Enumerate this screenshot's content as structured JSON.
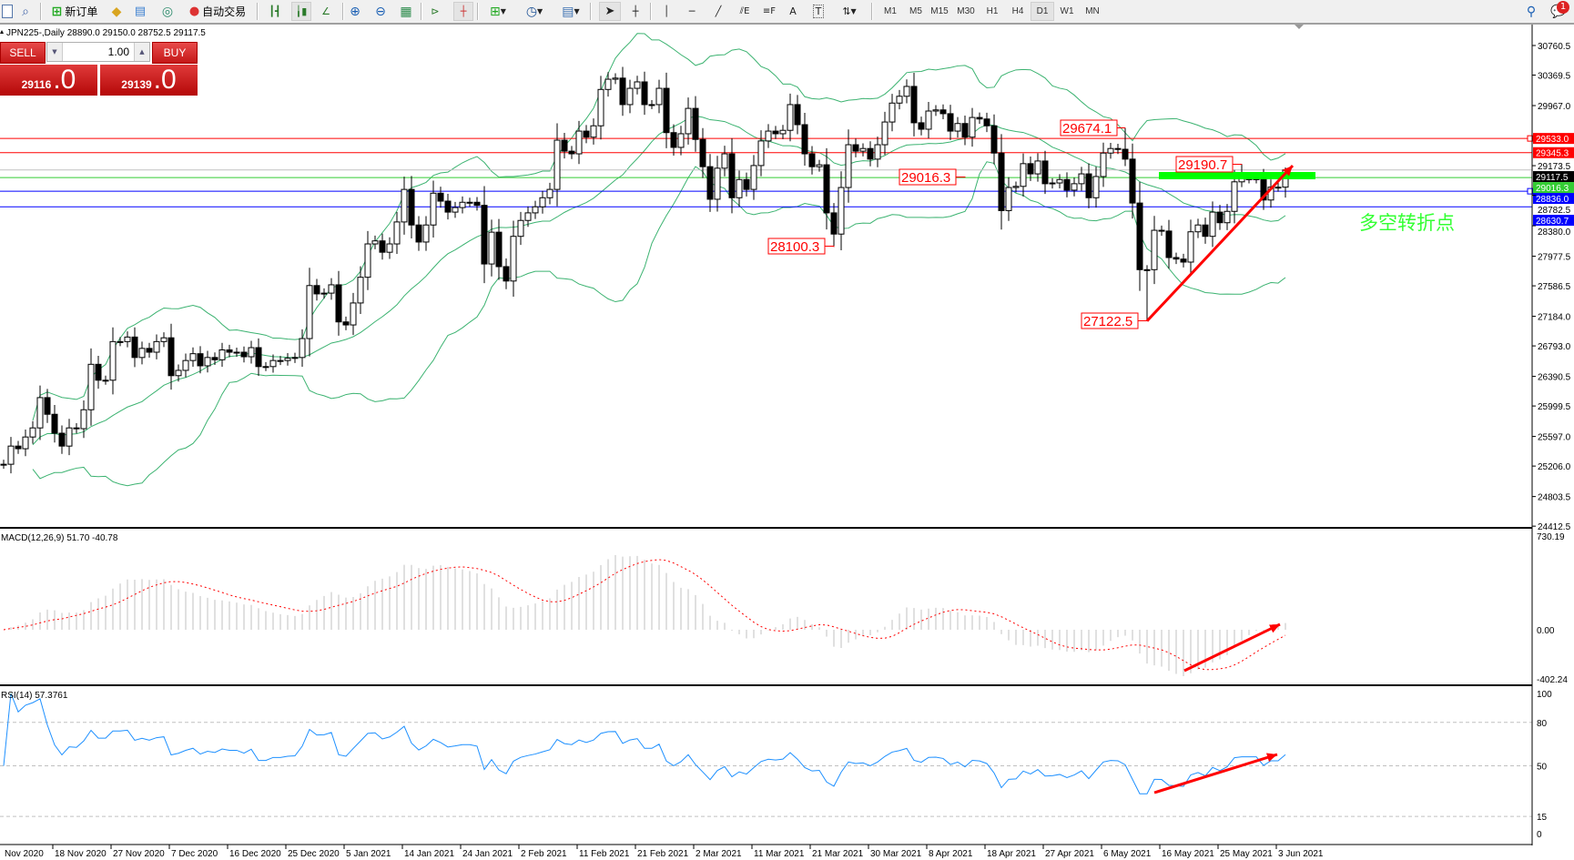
{
  "toolbar": {
    "new_order_label": "新订单",
    "auto_trading_label": "自动交易",
    "timeframes": [
      "M1",
      "M5",
      "M15",
      "M30",
      "H1",
      "H4",
      "D1",
      "W1",
      "MN"
    ],
    "active_timeframe": "D1",
    "notification_count": "1",
    "text_tool_label": "A",
    "label_tool_label": "T"
  },
  "chart_header": "JPN225-,Daily  28890.0 29150.0 28752.5 29117.5",
  "one_click": {
    "sell_label": "SELL",
    "buy_label": "BUY",
    "lot": "1.00",
    "sell_price_main": "29116",
    "sell_price_frac": ".0",
    "buy_price_main": "29139",
    "buy_price_frac": ".0"
  },
  "colors": {
    "bollinger": "#3cb371",
    "macd_hist": "#c0c0c0",
    "macd_signal": "#ff0000",
    "rsi": "#1e90ff",
    "annotation": "#ff0000",
    "zone": "#00ff00",
    "resistance": "#ff0000",
    "support": "#0000ff",
    "pivot": "#33cc33",
    "bid": "#c0c0c0"
  },
  "price_axis": {
    "ticks": [
      "30760.5",
      "30369.5",
      "29967.0",
      "29173.5",
      "28782.5",
      "28380.0",
      "27977.5",
      "27586.5",
      "27184.0",
      "26793.0",
      "26390.5",
      "25999.5",
      "25597.0",
      "25206.0",
      "24803.5",
      "24412.5"
    ],
    "levels": [
      {
        "value": 29533.0,
        "label": "29533.0",
        "color": "#ff0000",
        "handle": true
      },
      {
        "value": 29345.3,
        "label": "29345.3",
        "color": "#ff0000",
        "handle": false
      },
      {
        "value": 29117.5,
        "label": "29117.5",
        "color": "#000000",
        "line": "#c0c0c0",
        "handle": false
      },
      {
        "value": 29016.3,
        "label": "29016.3",
        "color": "#33cc33",
        "handle": false
      },
      {
        "value": 28836.0,
        "label": "28836.0",
        "color": "#0000ff",
        "handle": true
      },
      {
        "value": 28630.7,
        "label": "28630.7",
        "color": "#0000ff",
        "handle": false
      }
    ]
  },
  "time_axis": [
    "Nov 2020",
    "18 Nov 2020",
    "27 Nov 2020",
    "7 Dec 2020",
    "16 Dec 2020",
    "25 Dec 2020",
    "5 Jan 2021",
    "14 Jan 2021",
    "24 Jan 2021",
    "2 Feb 2021",
    "11 Feb 2021",
    "21 Feb 2021",
    "2 Mar 2021",
    "11 Mar 2021",
    "21 Mar 2021",
    "30 Mar 2021",
    "8 Apr 2021",
    "18 Apr 2021",
    "27 Apr 2021",
    "6 May 2021",
    "16 May 2021",
    "25 May 2021",
    "3 Jun 2021"
  ],
  "annotations": [
    {
      "label": "29674.1",
      "value": 29674.1,
      "bar": 154,
      "kind": "high"
    },
    {
      "label": "29016.3",
      "value": 29016.3,
      "bar": 132,
      "kind": "level"
    },
    {
      "label": "28100.3",
      "value": 28100.3,
      "bar": 114,
      "kind": "low"
    },
    {
      "label": "27122.5",
      "value": 27122.5,
      "bar": 157,
      "kind": "low"
    },
    {
      "label": "29190.7",
      "value": 29190.7,
      "bar": 170,
      "kind": "high"
    }
  ],
  "turning_point_text": "多空转折点",
  "macd": {
    "label": "MACD(12,26,9) 51.70 -40.78",
    "ticks": [
      "730.19",
      "0.00",
      "-402.24"
    ]
  },
  "rsi": {
    "label": "RSI(14) 57.3761",
    "ticks": [
      "100",
      "80",
      "50",
      "15",
      "0"
    ],
    "levels": [
      80,
      50,
      15
    ]
  },
  "chart_data": {
    "type": "candlestick",
    "symbol": "JPN225-",
    "timeframe": "Daily",
    "ylim": [
      24412.5,
      30760.5
    ],
    "last": {
      "open": 28890.0,
      "high": 29150.0,
      "low": 28752.5,
      "close": 29117.5
    },
    "close": [
      25230,
      25470,
      25435,
      25590,
      25710,
      26110,
      25890,
      25640,
      25470,
      25710,
      25700,
      25950,
      26550,
      26340,
      26340,
      26850,
      26850,
      26910,
      26640,
      26760,
      26710,
      26850,
      26900,
      26400,
      26470,
      26600,
      26690,
      26530,
      26640,
      26610,
      26740,
      26710,
      26710,
      26650,
      26770,
      26520,
      26520,
      26600,
      26600,
      26630,
      26640,
      26890,
      27590,
      27480,
      27490,
      27600,
      27110,
      27070,
      27360,
      27700,
      28140,
      28180,
      28030,
      28140,
      28430,
      28860,
      28390,
      28165,
      28390,
      28810,
      28705,
      28560,
      28620,
      28690,
      28690,
      28650,
      27875,
      28295,
      27840,
      27650,
      28240,
      28450,
      28550,
      28630,
      28750,
      28860,
      29510,
      29365,
      29330,
      29630,
      29550,
      29700,
      30180,
      30315,
      30330,
      29980,
      30195,
      30280,
      29980,
      29980,
      30195,
      29610,
      29415,
      29595,
      29930,
      29520,
      29160,
      28730,
      29140,
      29330,
      28750,
      28990,
      28860,
      29175,
      29500,
      29630,
      29595,
      29640,
      29980,
      29715,
      29330,
      29160,
      29185,
      28550,
      28270,
      28885,
      29450,
      29365,
      29400,
      29260,
      29450,
      29750,
      30000,
      30090,
      30220,
      29740,
      29655,
      29895,
      29910,
      29860,
      29630,
      29730,
      29550,
      29810,
      29790,
      29700,
      29340,
      28580,
      28885,
      28900,
      29200,
      29065,
      29235,
      28935,
      28945,
      28990,
      28850,
      28935,
      29065,
      28750,
      29030,
      29340,
      29400,
      29390,
      29260,
      28680,
      27800,
      27800,
      28320,
      28310,
      27960,
      27940,
      27900,
      28300,
      28390,
      28240,
      28560,
      28420,
      28570,
      28960,
      29000,
      29000,
      29000,
      28720,
      28890,
      28890,
      29117.5
    ],
    "indicators": [
      "Bollinger Bands(20,2)",
      "MACD(12,26,9)",
      "RSI(14)"
    ]
  }
}
